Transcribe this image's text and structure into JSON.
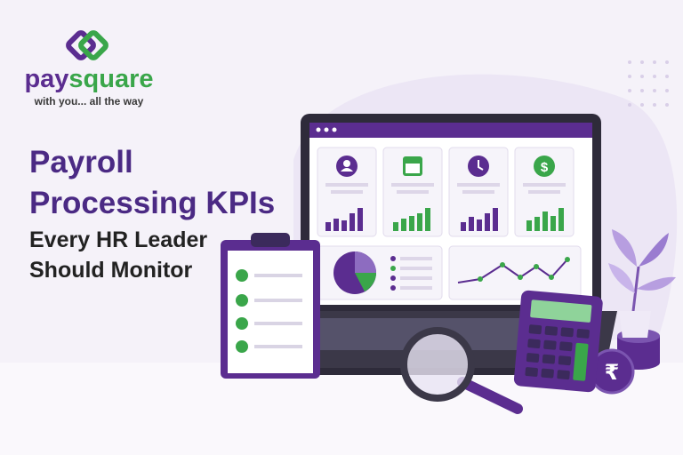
{
  "logo": {
    "name": "paysquare",
    "tagline": "with you... all the way"
  },
  "headline": {
    "lines": [
      "Payroll",
      "Processing KPIs",
      "Every HR Leader",
      "Should Monitor"
    ]
  }
}
